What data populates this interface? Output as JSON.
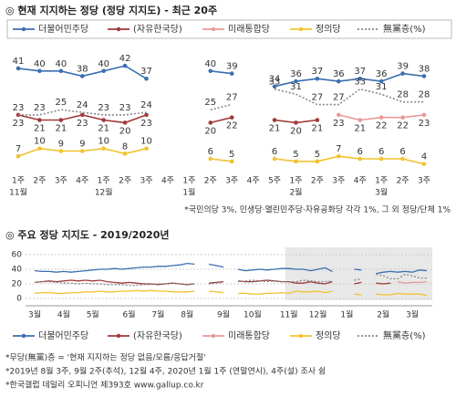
{
  "chart_data": [
    {
      "type": "line",
      "title": "◎ 현재 지지하는 정당 (정당 지지도) - 최근 20주",
      "categories": [
        "1주",
        "2주",
        "3주",
        "4주",
        "1주",
        "2주",
        "3주",
        "4주",
        "1주",
        "2주",
        "3주",
        "4주",
        "5주",
        "1주",
        "2주",
        "3주",
        "4주",
        "1주",
        "2주",
        "3주"
      ],
      "category_groups": [
        "11월",
        null,
        null,
        null,
        "12월",
        null,
        null,
        null,
        "1월",
        null,
        null,
        null,
        null,
        "2월",
        null,
        null,
        null,
        "3월",
        null,
        null
      ],
      "ylim": [
        0,
        45
      ],
      "value_labels_shown": true,
      "series": [
        {
          "name": "더불어민주당",
          "color": "#3a6fb0",
          "values": [
            41,
            40,
            40,
            38,
            40,
            42,
            37,
            null,
            null,
            40,
            39,
            null,
            34,
            36,
            37,
            36,
            37,
            36,
            39,
            38
          ]
        },
        {
          "name": "(자유한국당)",
          "color": "#9e3a3a",
          "values": [
            23,
            21,
            21,
            23,
            21,
            20,
            23,
            null,
            null,
            20,
            22,
            null,
            21,
            20,
            21,
            null,
            null,
            null,
            null,
            null
          ]
        },
        {
          "name": "미래통합당",
          "color": "#e89a9a",
          "values": [
            null,
            null,
            null,
            null,
            null,
            null,
            null,
            null,
            null,
            null,
            null,
            null,
            null,
            null,
            null,
            23,
            21,
            22,
            22,
            23
          ]
        },
        {
          "name": "정의당",
          "color": "#f2c230",
          "values": [
            7,
            10,
            9,
            9,
            10,
            8,
            10,
            null,
            null,
            6,
            5,
            null,
            6,
            5,
            5,
            7,
            6,
            6,
            6,
            4
          ]
        },
        {
          "name": "無黨층(%)",
          "color": "#888888",
          "line_style": "dotted",
          "values": [
            23,
            23,
            25,
            24,
            23,
            23,
            24,
            null,
            null,
            25,
            27,
            null,
            33,
            31,
            27,
            27,
            33,
            31,
            28,
            28
          ]
        }
      ],
      "note": "*국민의당 3%, 민생당·열린민주당·자유공화당 각각 1%, 그 외 정당/단체 1%"
    },
    {
      "type": "line",
      "title": "◎ 주요 정당 지지도 - 2019/2020년",
      "categories": [
        "3월",
        null,
        null,
        null,
        "4월",
        null,
        null,
        null,
        "5월",
        null,
        null,
        null,
        null,
        "6월",
        null,
        null,
        null,
        "7월",
        null,
        null,
        null,
        "8월",
        null,
        null,
        null,
        null,
        "9월",
        null,
        null,
        null,
        "10월",
        null,
        null,
        null,
        null,
        "11월",
        null,
        null,
        null,
        "12월",
        null,
        null,
        null,
        "1월",
        null,
        null,
        null,
        null,
        "2월",
        null,
        null,
        null,
        "3월",
        null,
        null
      ],
      "ylim": [
        0,
        60
      ],
      "yticks": [
        0,
        20,
        40,
        60
      ],
      "grid": true,
      "series": [
        {
          "name": "더불어민주당",
          "color": "#3a6fb0",
          "values": [
            38,
            37,
            37,
            36,
            37,
            36,
            37,
            38,
            39,
            40,
            40,
            41,
            40,
            41,
            42,
            43,
            43,
            44,
            44,
            45,
            46,
            48,
            47,
            null,
            47,
            45,
            43,
            null,
            40,
            38,
            39,
            40,
            39,
            40,
            41,
            41,
            40,
            40,
            38,
            40,
            42,
            37,
            null,
            null,
            40,
            39,
            null,
            34,
            36,
            37,
            36,
            37,
            36,
            39,
            38
          ]
        },
        {
          "name": "(자유한국당)",
          "color": "#9e3a3a",
          "values": [
            22,
            23,
            24,
            23,
            24,
            25,
            24,
            25,
            24,
            25,
            23,
            22,
            21,
            22,
            21,
            20,
            20,
            19,
            20,
            21,
            20,
            19,
            20,
            null,
            21,
            22,
            23,
            null,
            24,
            23,
            23,
            24,
            25,
            24,
            23,
            23,
            21,
            21,
            23,
            21,
            20,
            23,
            null,
            null,
            20,
            22,
            null,
            21,
            20,
            21,
            null,
            null,
            null,
            null,
            null
          ]
        },
        {
          "name": "미래통합당",
          "color": "#e89a9a",
          "values": [
            null,
            null,
            null,
            null,
            null,
            null,
            null,
            null,
            null,
            null,
            null,
            null,
            null,
            null,
            null,
            null,
            null,
            null,
            null,
            null,
            null,
            null,
            null,
            null,
            null,
            null,
            null,
            null,
            null,
            null,
            null,
            null,
            null,
            null,
            null,
            null,
            null,
            null,
            null,
            null,
            null,
            null,
            null,
            null,
            null,
            null,
            null,
            null,
            null,
            null,
            23,
            21,
            22,
            22,
            23
          ]
        },
        {
          "name": "정의당",
          "color": "#f2c230",
          "values": [
            7,
            8,
            8,
            7,
            7,
            8,
            8,
            9,
            9,
            10,
            9,
            9,
            10,
            10,
            11,
            10,
            11,
            10,
            10,
            9,
            9,
            9,
            10,
            null,
            10,
            9,
            8,
            null,
            7,
            7,
            6,
            6,
            7,
            7,
            8,
            7,
            10,
            9,
            9,
            10,
            8,
            10,
            null,
            null,
            6,
            5,
            null,
            6,
            5,
            5,
            7,
            6,
            6,
            6,
            4
          ]
        },
        {
          "name": "無黨층(%)",
          "color": "#888888",
          "line_style": "dotted",
          "values": [
            22,
            23,
            23,
            22,
            21,
            21,
            20,
            21,
            20,
            20,
            19,
            19,
            19,
            18,
            18,
            19,
            19,
            20,
            20,
            21,
            20,
            19,
            20,
            null,
            20,
            21,
            22,
            null,
            23,
            24,
            25,
            24,
            23,
            24,
            23,
            23,
            23,
            25,
            24,
            23,
            23,
            24,
            null,
            null,
            25,
            27,
            null,
            33,
            31,
            27,
            27,
            33,
            31,
            28,
            28
          ]
        }
      ],
      "notes": [
        "*무당(無黨)층 = '현재 지지하는 정당 없음/모름/응답거절'",
        "*2019년 8월 3주, 9월 2주(추석), 12월 4주, 2020년 1월 1주 (연말연시), 4주(설) 조사 쉼",
        "*한국갤럽 데일리 오피니언 제393호 www.gallup.co.kr"
      ]
    }
  ]
}
